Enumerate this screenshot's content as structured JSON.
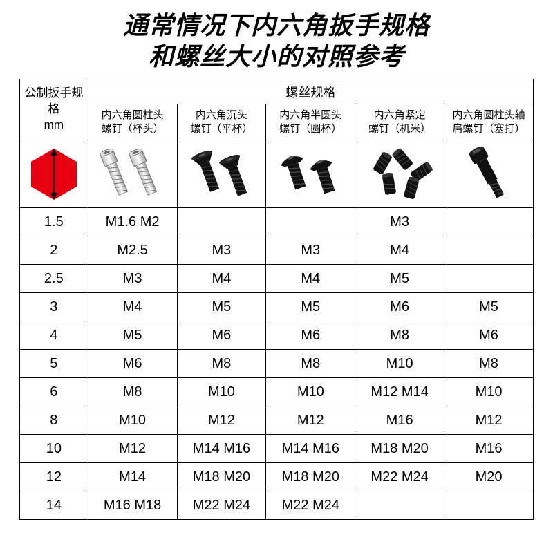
{
  "title_line1": "通常情况下内六角扳手规格",
  "title_line2": "和螺丝大小的对照参考",
  "header": {
    "wrench": "公制扳手规格",
    "wrench_unit": "mm",
    "screw_group": "螺丝规格",
    "types": [
      {
        "l1": "内六角圆柱头",
        "l2": "螺钉（杯头）"
      },
      {
        "l1": "内六角沉头",
        "l2": "螺钉（平杯）"
      },
      {
        "l1": "内六角半圆头",
        "l2": "螺钉（圆杯）"
      },
      {
        "l1": "内六角紧定",
        "l2": "螺钉（机米）"
      },
      {
        "l1": "内六角圆柱头轴",
        "l2": "肩螺钉（塞打）"
      }
    ]
  },
  "hex_color": "#e60012",
  "rows": [
    {
      "w": "1.5",
      "c": [
        "M1.6  M2",
        "",
        "",
        "M3",
        ""
      ]
    },
    {
      "w": "2",
      "c": [
        "M2.5",
        "M3",
        "M3",
        "M4",
        ""
      ]
    },
    {
      "w": "2.5",
      "c": [
        "M3",
        "M4",
        "M4",
        "M5",
        ""
      ]
    },
    {
      "w": "3",
      "c": [
        "M4",
        "M5",
        "M5",
        "M6",
        "M5"
      ]
    },
    {
      "w": "4",
      "c": [
        "M5",
        "M6",
        "M6",
        "M8",
        "M6"
      ]
    },
    {
      "w": "5",
      "c": [
        "M6",
        "M8",
        "M8",
        "M10",
        "M8"
      ]
    },
    {
      "w": "6",
      "c": [
        "M8",
        "M10",
        "M10",
        "M12 M14",
        "M10"
      ]
    },
    {
      "w": "8",
      "c": [
        "M10",
        "M12",
        "M12",
        "M16",
        "M12"
      ]
    },
    {
      "w": "10",
      "c": [
        "M12",
        "M14 M16",
        "M14 M16",
        "M18 M20",
        "M16"
      ]
    },
    {
      "w": "12",
      "c": [
        "M14",
        "M18 M20",
        "M18 M20",
        "M22 M24",
        "M20"
      ]
    },
    {
      "w": "14",
      "c": [
        "M16  M18",
        "M22 M24",
        "M22 M24",
        "",
        ""
      ]
    }
  ]
}
